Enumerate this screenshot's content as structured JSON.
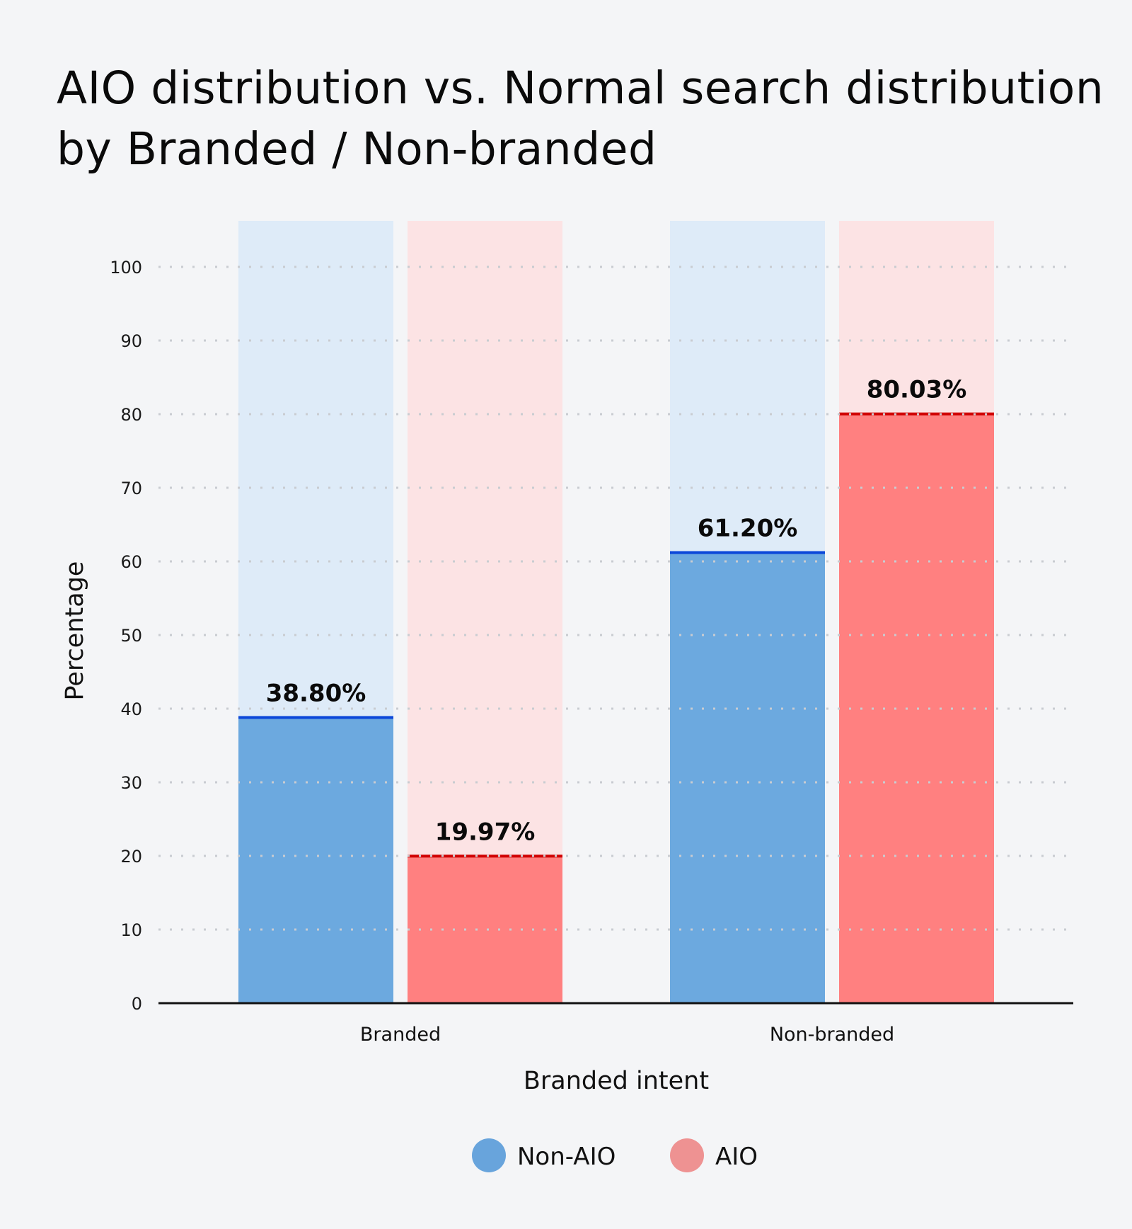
{
  "chart_data": {
    "type": "bar",
    "title": "AIO distribution vs. Normal search distribution by Branded / Non-branded",
    "xlabel": "Branded intent",
    "ylabel": "Percentage",
    "categories": [
      "Branded",
      "Non-branded"
    ],
    "series": [
      {
        "name": "Non-AIO",
        "values": [
          38.8,
          61.2
        ],
        "labels": [
          "38.80%",
          "61.20%"
        ],
        "color": "#6ca9df",
        "track_color": "#d9e9f8",
        "line_color": "#0b47d9"
      },
      {
        "name": "AIO",
        "values": [
          19.97,
          80.03
        ],
        "labels": [
          "19.97%",
          "80.03%"
        ],
        "color": "#ff8080",
        "track_color": "#fddfe1",
        "line_color": "#d00000"
      }
    ],
    "ylim": [
      0,
      100
    ],
    "yticks": [
      "0",
      "10",
      "20",
      "30",
      "40",
      "50",
      "60",
      "70",
      "80",
      "90",
      "100"
    ],
    "grid": true,
    "legend": {
      "position": "bottom",
      "entries": [
        "Non-AIO",
        "AIO"
      ],
      "colors": [
        "#68a4dc",
        "#ee9292"
      ]
    }
  }
}
